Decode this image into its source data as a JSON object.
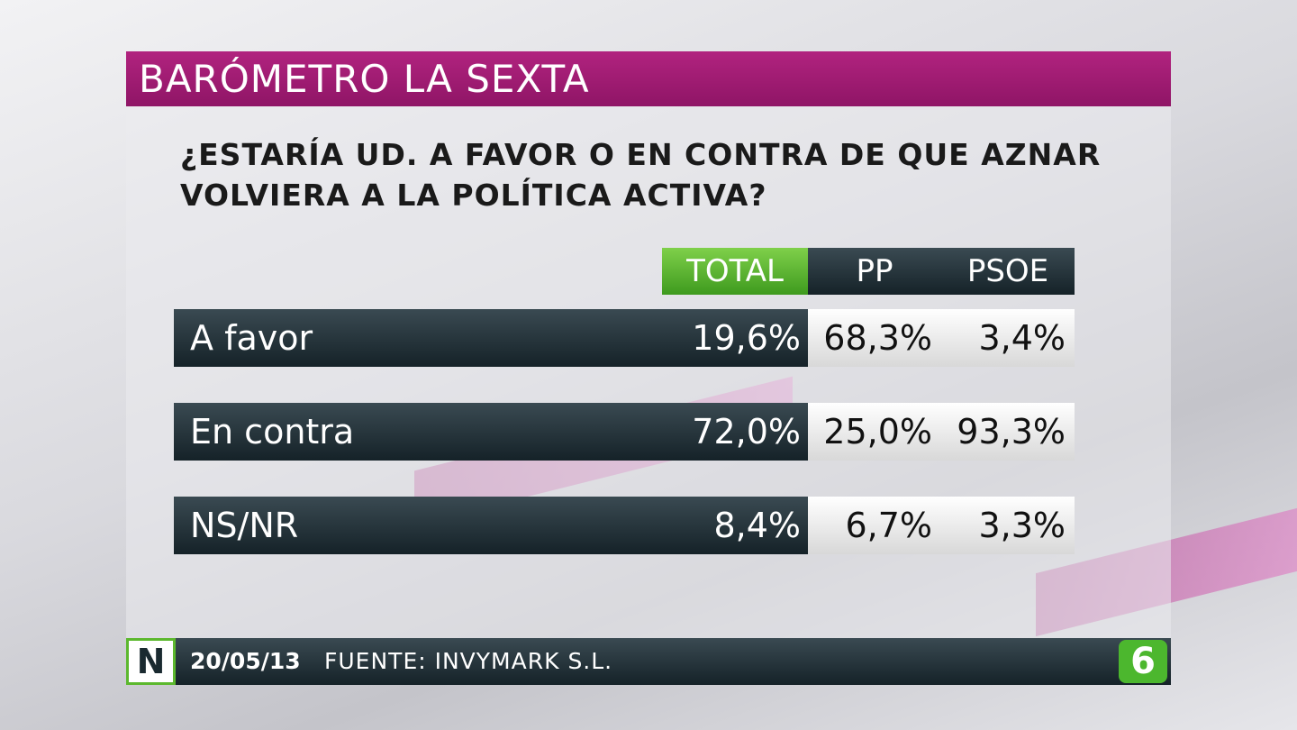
{
  "header": {
    "title": "BARÓMETRO LA SEXTA"
  },
  "question": {
    "lines": [
      "¿ESTARÍA UD. A FAVOR O EN CONTRA DE QUE AZNAR",
      "VOLVIERA A LA POLÍTICA ACTIVA?"
    ]
  },
  "table": {
    "columns": [
      "TOTAL",
      "PP",
      "PSOE"
    ],
    "rows": [
      {
        "label": "A favor",
        "cells": [
          "19,6%",
          "68,3%",
          "3,4%"
        ]
      },
      {
        "label": "En contra",
        "cells": [
          "72,0%",
          "25,0%",
          "93,3%"
        ]
      },
      {
        "label": "NS/NR",
        "cells": [
          "8,4%",
          "6,7%",
          "3,3%"
        ]
      }
    ]
  },
  "footer": {
    "badge": "N",
    "date": "20/05/13",
    "source": "FUENTE: INVYMARK S.L.",
    "logo": "6"
  }
}
